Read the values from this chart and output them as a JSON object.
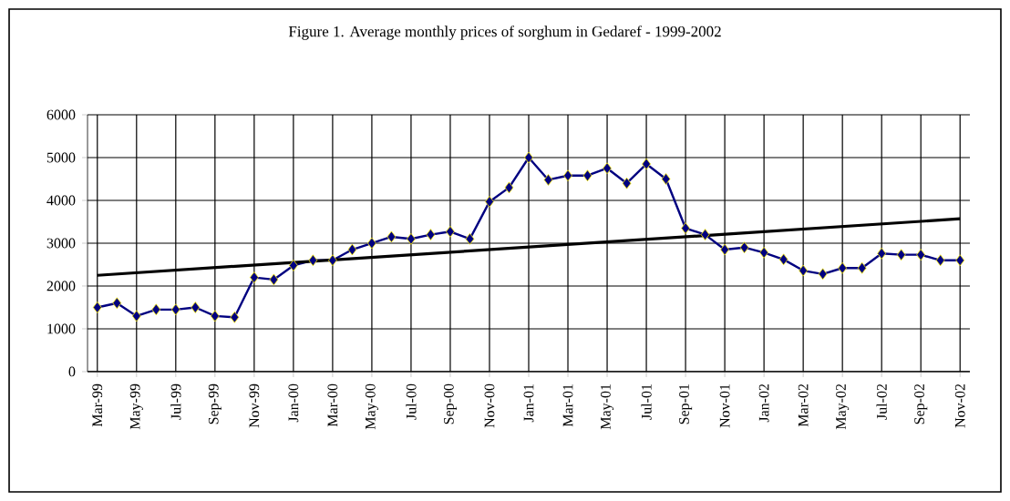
{
  "chart_data": {
    "type": "line",
    "title": "Figure 1. Average monthly prices of sorghum in Gedaref - 1999-2002",
    "categories": [
      "Mar-99",
      null,
      "May-99",
      null,
      "Jul-99",
      null,
      "Sep-99",
      null,
      "Nov-99",
      null,
      "Jan-00",
      null,
      "Mar-00",
      null,
      "May-00",
      null,
      "Jul-00",
      null,
      "Sep-00",
      null,
      "Nov-00",
      null,
      "Jan-01",
      null,
      "Mar-01",
      null,
      "May-01",
      null,
      "Jul-01",
      null,
      "Sep-01",
      null,
      "Nov-01",
      null,
      "Jan-02",
      null,
      "Mar-02",
      null,
      "May-02",
      null,
      "Jul-02",
      null,
      "Sep-02",
      null,
      "Nov-02"
    ],
    "series": [
      {
        "color": "#000080",
        "marker": "diamond",
        "values": [
          1500,
          1600,
          1300,
          1450,
          1450,
          1500,
          1300,
          1270,
          2200,
          2150,
          2480,
          2600,
          2600,
          2850,
          3000,
          3150,
          3100,
          3200,
          3270,
          3100,
          3970,
          4300,
          5000,
          4480,
          4580,
          4580,
          4750,
          4400,
          4850,
          4500,
          3350,
          3200,
          2850,
          2900,
          2780,
          2620,
          2360,
          2280,
          2420,
          2420,
          2760,
          2730,
          2730,
          2600,
          2600
        ]
      },
      {
        "type": "line",
        "color": "#000000",
        "marker": "none",
        "x": [
          "Mar-99",
          "Nov-02"
        ],
        "values": [
          2250,
          3570
        ]
      }
    ],
    "ylim": [
      0,
      6000
    ],
    "yticks": [
      0,
      1000,
      2000,
      3000,
      4000,
      5000,
      6000
    ],
    "grid": true
  }
}
